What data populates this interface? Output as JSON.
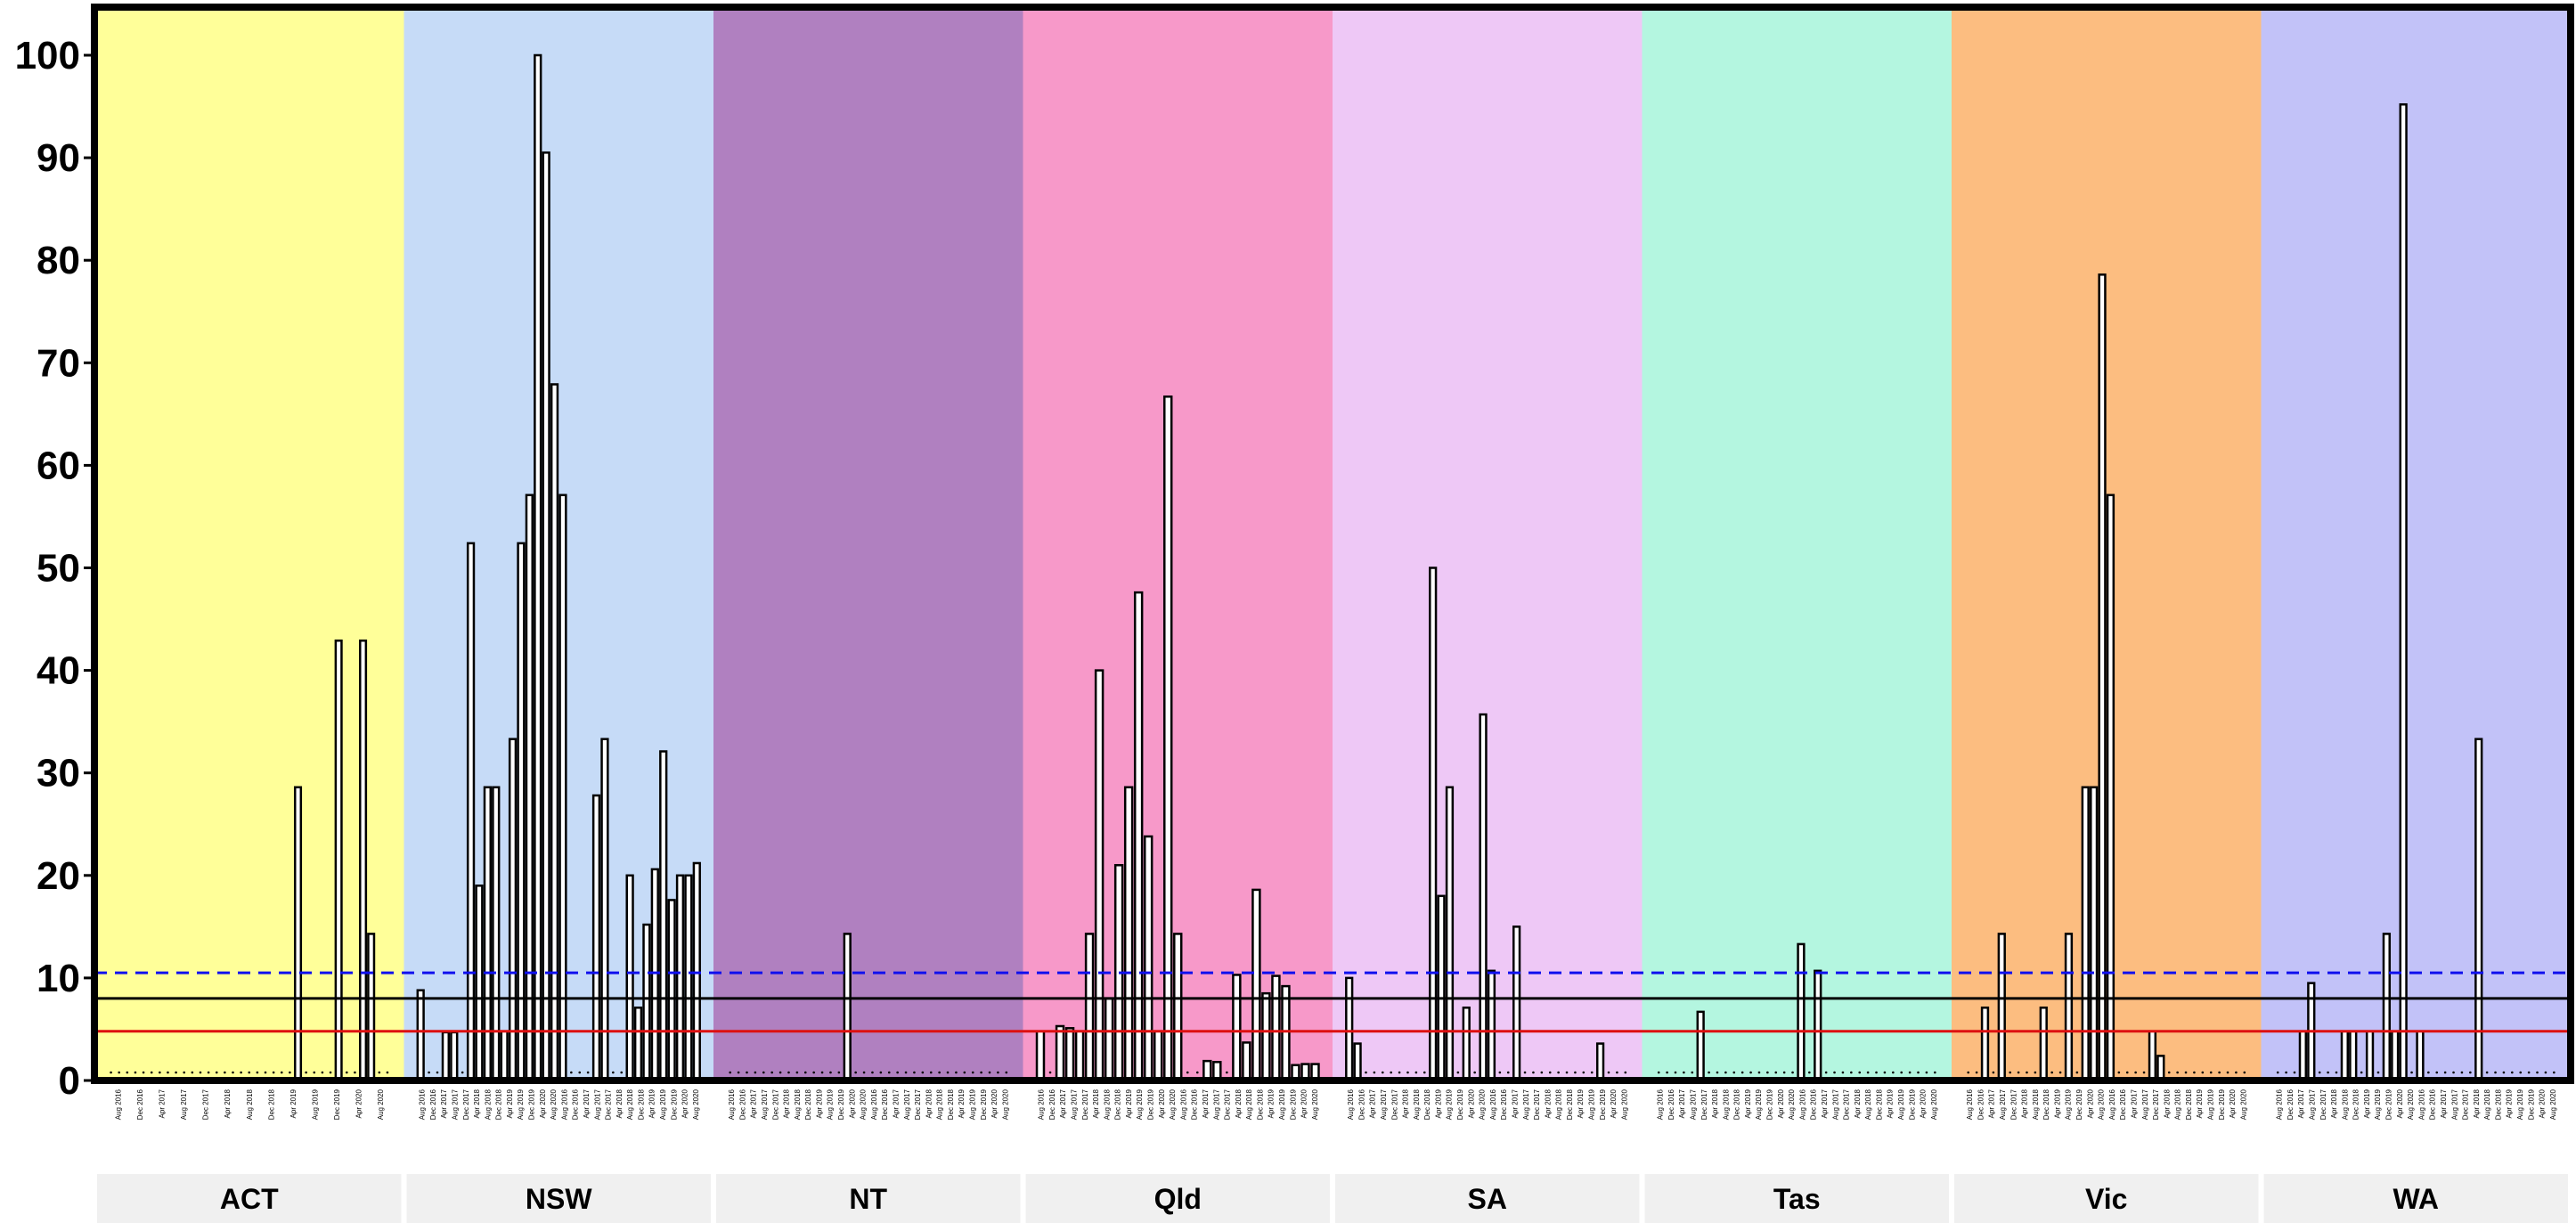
{
  "chart_data": {
    "type": "bar",
    "title": "",
    "xlabel": "",
    "ylabel": "",
    "ylim": [
      0,
      105
    ],
    "yticks": [
      0,
      10,
      20,
      30,
      40,
      50,
      60,
      70,
      80,
      90,
      100
    ],
    "grid": false,
    "legend": "none",
    "reference_lines": [
      {
        "value": 10.5,
        "color": "#1010ee",
        "style": "dashed"
      },
      {
        "value": 8.0,
        "color": "#000000",
        "style": "solid"
      },
      {
        "value": 4.8,
        "color": "#dd1010",
        "style": "solid"
      }
    ],
    "facets": [
      {
        "label": "ACT",
        "bg": "#ffff99",
        "ticks": [
          "Aug 2016",
          "Dec 2016",
          "Apr 2017",
          "Aug 2017",
          "Dec 2017",
          "Apr 2018",
          "Aug 2018",
          "Dec 2018",
          "Apr 2019",
          "Aug 2019",
          "Dec 2019",
          "Apr 2020",
          "Aug 2020"
        ],
        "values": [
          0,
          0,
          0,
          0,
          0,
          0,
          0,
          0,
          0,
          0,
          0,
          0,
          0,
          0,
          0,
          0,
          0,
          0,
          0,
          0,
          0,
          0,
          0,
          28.6,
          0,
          0,
          0,
          0,
          42.9,
          0,
          0,
          42.9,
          14.3,
          0,
          0
        ]
      },
      {
        "label": "NSW",
        "bg": "#c6dbf7",
        "ticks": [
          "Aug 2016",
          "Dec 2016",
          "Apr 2017",
          "Aug 2017",
          "Dec 2017",
          "Apr 2018",
          "Aug 2018",
          "Dec 2018",
          "Apr 2019",
          "Aug 2019",
          "Dec 2019",
          "Apr 2020",
          "Aug 2020",
          "Aug 2016",
          "Dec 2016",
          "Apr 2017",
          "Aug 2017",
          "Dec 2017",
          "Apr 2018",
          "Aug 2018",
          "Dec 2018",
          "Apr 2019",
          "Aug 2019",
          "Dec 2019",
          "Apr 2020",
          "Aug 2020"
        ],
        "values": [
          8.8,
          0,
          0,
          4.7,
          4.7,
          0,
          52.4,
          19,
          28.6,
          28.6,
          4.8,
          33.3,
          52.4,
          57.1,
          100,
          90.5,
          67.9,
          57.1,
          0,
          0,
          0,
          27.8,
          33.3,
          0,
          0,
          20,
          7.1,
          15.2,
          20.6,
          32.1,
          17.6,
          20,
          20,
          21.2
        ]
      },
      {
        "label": "NT",
        "bg": "#b080c0",
        "ticks": [
          "Aug 2016",
          "Dec 2016",
          "Apr 2017",
          "Aug 2017",
          "Dec 2017",
          "Apr 2018",
          "Aug 2018",
          "Dec 2018",
          "Apr 2019",
          "Aug 2019",
          "Dec 2019",
          "Apr 2020",
          "Aug 2020",
          "Aug 2016",
          "Dec 2016",
          "Apr 2017",
          "Aug 2017",
          "Dec 2017",
          "Apr 2018",
          "Aug 2018",
          "Dec 2018",
          "Apr 2019",
          "Aug 2019",
          "Dec 2019",
          "Apr 2020",
          "Aug 2020"
        ],
        "values": [
          0,
          0,
          0,
          0,
          0,
          0,
          0,
          0,
          0,
          0,
          0,
          0,
          0,
          0,
          14.3,
          0,
          0,
          0,
          0,
          0,
          0,
          0,
          0,
          0,
          0,
          0,
          0,
          0,
          0,
          0,
          0,
          0,
          0,
          0
        ]
      },
      {
        "label": "Qld",
        "bg": "#f799c9",
        "ticks": [
          "Aug 2016",
          "Dec 2016",
          "Apr 2017",
          "Aug 2017",
          "Dec 2017",
          "Apr 2018",
          "Aug 2018",
          "Dec 2018",
          "Apr 2019",
          "Aug 2019",
          "Dec 2019",
          "Apr 2020",
          "Aug 2020",
          "Aug 2016",
          "Dec 2016",
          "Apr 2017",
          "Aug 2017",
          "Dec 2017",
          "Apr 2018",
          "Aug 2018",
          "Dec 2018",
          "Apr 2019",
          "Aug 2019",
          "Dec 2019",
          "Apr 2020",
          "Aug 2020"
        ],
        "values": [
          4.8,
          0,
          5.3,
          5.1,
          4.8,
          14.3,
          40,
          8,
          21,
          28.6,
          47.6,
          23.8,
          4.8,
          66.7,
          14.3,
          0,
          0,
          1.9,
          1.8,
          0,
          10.3,
          3.7,
          18.6,
          8.5,
          10.2,
          9.2,
          1.5,
          1.6,
          1.6
        ]
      },
      {
        "label": "SA",
        "bg": "#eec8f6",
        "ticks": [
          "Aug 2016",
          "Dec 2016",
          "Apr 2017",
          "Aug 2017",
          "Dec 2017",
          "Apr 2018",
          "Aug 2018",
          "Dec 2018",
          "Apr 2019",
          "Aug 2019",
          "Dec 2019",
          "Apr 2020",
          "Aug 2020",
          "Aug 2016",
          "Dec 2016",
          "Apr 2017",
          "Aug 2017",
          "Dec 2017",
          "Apr 2018",
          "Aug 2018",
          "Dec 2018",
          "Apr 2019",
          "Aug 2019",
          "Dec 2019",
          "Apr 2020",
          "Aug 2020"
        ],
        "values": [
          10,
          3.6,
          0,
          0,
          0,
          0,
          0,
          0,
          0,
          0,
          50,
          18,
          28.6,
          0,
          7.1,
          0,
          35.7,
          10.7,
          0,
          0,
          15,
          0,
          0,
          0,
          0,
          0,
          0,
          0,
          0,
          0,
          3.6,
          0,
          0,
          0
        ]
      },
      {
        "label": "Tas",
        "bg": "#b4f6e0",
        "ticks": [
          "Aug 2016",
          "Dec 2016",
          "Apr 2017",
          "Aug 2017",
          "Dec 2017",
          "Apr 2018",
          "Aug 2018",
          "Dec 2018",
          "Apr 2019",
          "Aug 2019",
          "Dec 2019",
          "Apr 2020",
          "Aug 2020",
          "Aug 2016",
          "Dec 2016",
          "Apr 2017",
          "Aug 2017",
          "Dec 2017",
          "Apr 2018",
          "Aug 2018",
          "Dec 2018",
          "Apr 2019",
          "Aug 2019",
          "Dec 2019",
          "Apr 2020",
          "Aug 2020"
        ],
        "values": [
          0,
          0,
          0,
          0,
          0,
          6.7,
          0,
          0,
          0,
          0,
          0,
          0,
          0,
          0,
          0,
          0,
          0,
          13.3,
          0,
          10.7,
          0,
          0,
          0,
          0,
          0,
          0,
          0,
          0,
          0,
          0,
          0,
          0,
          0,
          0
        ]
      },
      {
        "label": "Vic",
        "bg": "#fcbd80",
        "ticks": [
          "Aug 2016",
          "Dec 2016",
          "Apr 2017",
          "Aug 2017",
          "Dec 2017",
          "Apr 2018",
          "Aug 2018",
          "Dec 2018",
          "Apr 2019",
          "Aug 2019",
          "Dec 2019",
          "Apr 2020",
          "Aug 2020",
          "Aug 2016",
          "Dec 2016",
          "Apr 2017",
          "Aug 2017",
          "Dec 2017",
          "Apr 2018",
          "Aug 2018",
          "Dec 2018",
          "Apr 2019",
          "Aug 2019",
          "Dec 2019",
          "Apr 2020",
          "Aug 2020"
        ],
        "values": [
          0,
          0,
          7.1,
          0,
          14.3,
          0,
          0,
          0,
          0,
          7.1,
          0,
          0,
          14.3,
          0,
          28.6,
          28.6,
          78.6,
          57.1,
          0,
          0,
          0,
          0,
          4.8,
          2.4,
          0,
          0,
          0,
          0,
          0,
          0,
          0,
          0,
          0,
          0
        ]
      },
      {
        "label": "WA",
        "bg": "#c2c2f8",
        "ticks": [
          "Aug 2016",
          "Dec 2016",
          "Apr 2017",
          "Aug 2017",
          "Dec 2017",
          "Apr 2018",
          "Aug 2018",
          "Dec 2018",
          "Apr 2019",
          "Aug 2019",
          "Dec 2019",
          "Apr 2020",
          "Aug 2020",
          "Aug 2016",
          "Dec 2016",
          "Apr 2017",
          "Aug 2017",
          "Dec 2017",
          "Apr 2018",
          "Aug 2018",
          "Dec 2018",
          "Apr 2019",
          "Aug 2019",
          "Dec 2019",
          "Apr 2020",
          "Aug 2020"
        ],
        "values": [
          0,
          0,
          0,
          4.8,
          9.5,
          0,
          0,
          0,
          4.8,
          4.8,
          0,
          4.8,
          0,
          14.3,
          4.8,
          95.2,
          0,
          4.8,
          0,
          0,
          0,
          0,
          0,
          0,
          33.3,
          0,
          0,
          0,
          0,
          0,
          0,
          0,
          0,
          0
        ]
      }
    ]
  }
}
